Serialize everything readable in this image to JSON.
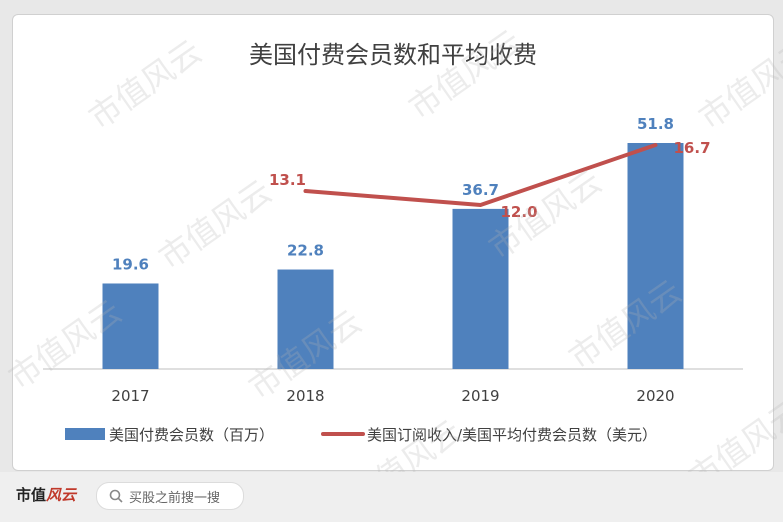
{
  "chart_data": {
    "type": "bar",
    "title": "美国付费会员数和平均收费",
    "categories": [
      "2017",
      "2018",
      "2019",
      "2020"
    ],
    "series": [
      {
        "name": "美国付费会员数（百万）",
        "kind": "bar",
        "values": [
          19.6,
          22.8,
          36.7,
          51.8
        ],
        "color": "#4f81bd"
      },
      {
        "name": "美国订阅收入/美国平均付费会员数（美元）",
        "kind": "line",
        "values": [
          null,
          13.1,
          12.0,
          16.7
        ],
        "color": "#c0504d"
      }
    ],
    "bar_labels": [
      "19.6",
      "22.8",
      "36.7",
      "51.8"
    ],
    "line_labels": [
      "",
      "13.1",
      "12.0",
      "16.7"
    ],
    "ylim_bar": [
      0,
      55
    ],
    "ylim_line": [
      0,
      19
    ],
    "grid": false,
    "legend_position": "bottom"
  },
  "watermark": "市值风云",
  "footer": {
    "logo_main": "市值",
    "logo_fancy": "风云",
    "search_placeholder": "买股之前搜一搜",
    "search_icon": "search-icon"
  }
}
